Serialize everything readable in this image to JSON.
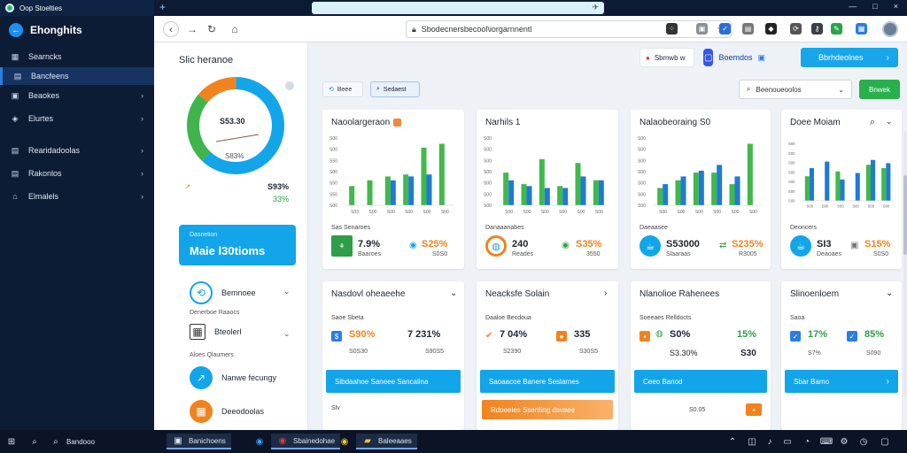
{
  "browser": {
    "tab_title": "Oop Stoelties",
    "url": "Sbodecnersbecool\\iorgarnnentl",
    "close": "×",
    "maximize": "□",
    "minimize": "—"
  },
  "sidebar": {
    "brand": "Ehonghits",
    "items": [
      {
        "label": "Searncks",
        "icon": "grid-icon"
      },
      {
        "label": "Bancfeens",
        "icon": "table-icon"
      },
      {
        "label": "Beaokes",
        "icon": "box-icon"
      },
      {
        "label": "Elurtes",
        "icon": "cube-icon"
      },
      {
        "label": "Rearidadoolas",
        "icon": "table-icon"
      },
      {
        "label": "Rakonlos",
        "icon": "table-icon"
      },
      {
        "label": "Elmalels",
        "icon": "store-icon"
      }
    ]
  },
  "left_panel": {
    "title": "Slic heranoe",
    "donut": {
      "center_a": "S53.30",
      "center_b": "S83%",
      "right_a": "S93%",
      "right_b": "33%",
      "segments": [
        0.62,
        0.24,
        0.14
      ]
    },
    "cta_small": "Dasnelion",
    "cta_big": "Maie l30tioms",
    "items": [
      {
        "label": "Bemnoee",
        "sub": "Denerboe Raaocs"
      },
      {
        "label": "Bteolerl",
        "sub": "Aloes Qlaumers"
      },
      {
        "label": "Nanwe fecungy",
        "sub": ""
      },
      {
        "label": "Deeodoolas",
        "sub": ""
      }
    ]
  },
  "header_buttons": {
    "notif": "Sbmwb w",
    "devices": "Boemdos",
    "primary": "Bbrhdeolnes"
  },
  "filters": {
    "chip1": "Beee",
    "chip2": "Sedaest",
    "search": "Beenoueoolos",
    "go": "Bnwek"
  },
  "cards_top": [
    {
      "title": "Naoolargeraon",
      "badge": true,
      "cap": "Sas Senaroes",
      "kpi1": "7.9%",
      "kpi1_sub": "Baaroes",
      "kpi2": "S25%",
      "kpi2_sub": "S0S0"
    },
    {
      "title": "Narhils 1",
      "badge": false,
      "cap": "Danaaanabes",
      "kpi1": "240",
      "kpi1_sub": "Reades",
      "kpi2": "S35%",
      "kpi2_sub": "3550"
    },
    {
      "title": "Nalaobeoraing S0",
      "badge": false,
      "cap": "Daeaasee",
      "kpi1": "S53000",
      "kpi1_sub": "Slaaraas",
      "kpi2": "S235%",
      "kpi2_sub": "R3005"
    },
    {
      "title": "Doee Moiam",
      "badge": false,
      "cap": "Deoncers",
      "kpi1": "SI3",
      "kpi1_sub": "Deaoaes",
      "kpi2": "S15%",
      "kpi2_sub": "S0S0"
    }
  ],
  "cards_bottom": [
    {
      "title": "Nasdovl oheaeehe",
      "cap": "Saoe Sbeta",
      "a": "S90%",
      "b": "7 231%",
      "c": "S0S30",
      "d": "S90S5",
      "btn": "Sibdaahoe Saneee Sancalina",
      "foot": "Slv"
    },
    {
      "title": "Neacksfe Solain",
      "cap": "Daaloe Becdoua",
      "a": "7 04%",
      "b": "335",
      "c": "S2390",
      "d": "S30S5",
      "btn": "Saoaacoe Banere Seslarnes",
      "foot": "Rdoeeles Ssertling dsvaee"
    },
    {
      "title": "Nlanolioe Rahenees",
      "cap": "Soeeaes Relldocts",
      "a": "S0%",
      "b": "15%",
      "c": "S3.30%",
      "d": "S30",
      "btn": "Ceeo Banod",
      "foot": "S0.05"
    },
    {
      "title": "Slinoenloem",
      "cap": "Saoa",
      "a": "17%",
      "b": "85%",
      "c": "S7%",
      "d": "S090",
      "btn": "Sbar Bamo",
      "foot": ""
    }
  ],
  "taskbar": {
    "search": "Bandooo",
    "app1": "Banichoens",
    "app2": "Sbainedohae",
    "app3": "Baleeaaes"
  },
  "chart_data": [
    {
      "type": "bar",
      "title": "Naoolargeraon",
      "yticks": [
        "S00",
        "S50",
        "S50",
        "S00",
        "S50",
        "S00",
        "S00"
      ],
      "categories": [
        "S03",
        "S00",
        "S00",
        "S00",
        "S00",
        "S00"
      ],
      "series": [
        {
          "values": [
            20,
            26,
            30,
            32,
            60,
            64
          ],
          "color": "#41b94a"
        },
        {
          "values": [
            0,
            0,
            26,
            30,
            32,
            0
          ],
          "color": "#1f7ad6"
        }
      ]
    },
    {
      "type": "bar",
      "title": "Narhils 1",
      "yticks": [
        "S00",
        "S00",
        "S00",
        "S00",
        "S00",
        "S00",
        "S00"
      ],
      "categories": [
        "S00",
        "S00",
        "S00",
        "S00",
        "S00",
        "S00"
      ],
      "series": [
        {
          "values": [
            34,
            22,
            48,
            20,
            44,
            26
          ],
          "color": "#41b94a"
        },
        {
          "values": [
            26,
            20,
            18,
            18,
            30,
            26
          ],
          "color": "#1f7ad6"
        }
      ]
    },
    {
      "type": "bar",
      "title": "Nalaobeoraing S0",
      "yticks": [
        "S00",
        "S00",
        "S00",
        "S00",
        "S00",
        "S00",
        "S00"
      ],
      "categories": [
        "S00",
        "S00",
        "S00",
        "S00",
        "S00",
        "S00"
      ],
      "series": [
        {
          "values": [
            18,
            26,
            34,
            34,
            22,
            64
          ],
          "color": "#41b94a"
        },
        {
          "values": [
            22,
            30,
            36,
            42,
            30,
            0
          ],
          "color": "#1f7ad6"
        }
      ]
    },
    {
      "type": "bar",
      "title": "Doee Moiam",
      "yticks": [
        "S00",
        "S00",
        "S00",
        "S00",
        "S00",
        "S00",
        "S00"
      ],
      "categories": [
        "S00",
        "S00",
        "S00",
        "S00",
        "S00",
        "S00"
      ],
      "series": [
        {
          "values": [
            30,
            0,
            36,
            0,
            44,
            40
          ],
          "color": "#41b94a"
        },
        {
          "values": [
            40,
            48,
            26,
            34,
            50,
            46
          ],
          "color": "#1f7ad6"
        }
      ]
    }
  ]
}
